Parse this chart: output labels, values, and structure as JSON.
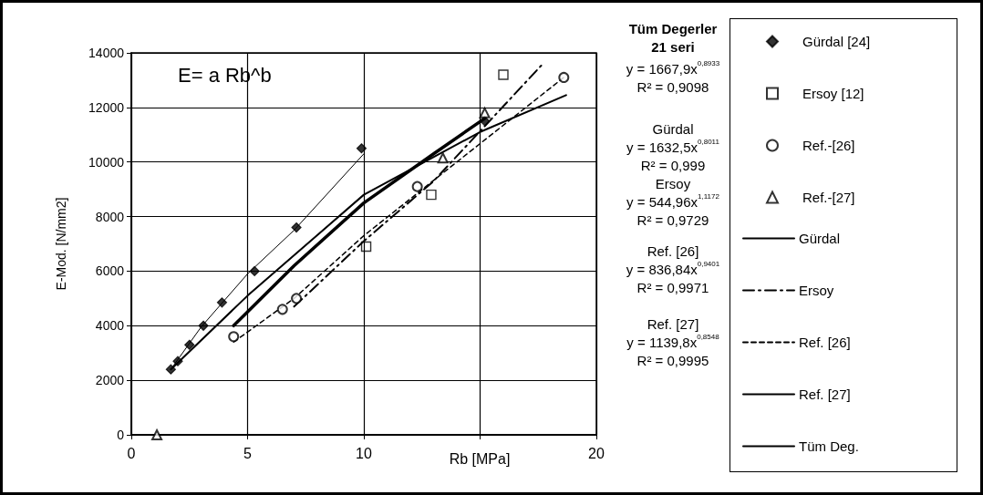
{
  "chart_data": {
    "type": "scatter",
    "xlabel": "Rb [MPa]",
    "ylabel": "E-Mod. [N/mm2]",
    "xlim": [
      0,
      20
    ],
    "xticks": [
      0,
      5,
      10,
      {
        "value": 15,
        "label": null
      },
      20
    ],
    "ylim": [
      0,
      14000
    ],
    "yticks": [
      0,
      2000,
      4000,
      6000,
      8000,
      10000,
      12000,
      14000
    ],
    "grid": true,
    "legend": "right",
    "annotations": [
      "E= a Rb^b",
      "Tüm Degerler\n21 seri",
      "y = 1667,9x$^{0,8933}$\nR² = 0,9098",
      "Gürdal\ny = 1632,5x$^{0,8011}$\nR² = 0,999",
      "Ersoy\ny = 544,96x$^{1,1172}$\nR² = 0,9729",
      "Ref. [26]\ny = 836,84x$^{0,9401}$\nR² = 0,9971",
      "Ref. [27]\ny = 1139,8x$^{0,8548}$\nR² = 0,9995"
    ],
    "series": [
      {
        "name": "Gürdal [24]",
        "marker": "diamond",
        "color": "#000000",
        "x": [
          1.7,
          2.0,
          2.5,
          3.1,
          3.9,
          5.3,
          7.1,
          9.9,
          15.2
        ],
        "values": [
          2400,
          2700,
          3300,
          4000,
          4850,
          6000,
          7600,
          10500,
          11500
        ]
      },
      {
        "name": "Ersoy [12]",
        "marker": "square",
        "color": "#000000",
        "x": [
          10.1,
          12.9,
          16.0
        ],
        "values": [
          6900,
          8800,
          13200
        ]
      },
      {
        "name": "Ref.-[26]",
        "marker": "circle",
        "color": "#000000",
        "x": [
          4.4,
          6.5,
          7.1,
          12.3,
          18.6
        ],
        "values": [
          3600,
          4600,
          5000,
          9100,
          13100
        ]
      },
      {
        "name": "Ref.-[27]",
        "marker": "triangle",
        "color": "#000000",
        "x": [
          1.1,
          13.4,
          15.2
        ],
        "values": [
          0,
          10150,
          11800
        ]
      },
      {
        "name": "Gürdal",
        "type": "line",
        "line_style": "solid",
        "color": "#000000",
        "x": [
          1.7,
          3,
          5,
          7,
          10
        ],
        "values": [
          2400,
          3950,
          5900,
          7500,
          10300
        ]
      },
      {
        "name": "Ersoy",
        "type": "line",
        "line_style": "dashdot",
        "color": "#000000",
        "x": [
          7,
          10,
          13,
          17.7
        ],
        "values": [
          4700,
          7100,
          9300,
          13600
        ]
      },
      {
        "name": "Ref. [26]",
        "type": "line",
        "line_style": "dashed",
        "color": "#000000",
        "x": [
          4.4,
          7,
          10,
          14,
          18.6
        ],
        "values": [
          3400,
          5000,
          7300,
          10000,
          13100
        ]
      },
      {
        "name": "Ref. [27]",
        "type": "line",
        "line_style": "solid",
        "color": "#000000",
        "x": [
          4.4,
          7,
          10,
          13,
          15.2
        ],
        "values": [
          4000,
          6200,
          8500,
          10300,
          11600
        ]
      },
      {
        "name": "Tüm Deg.",
        "type": "line",
        "line_style": "solid",
        "color": "#000000",
        "x": [
          1.7,
          5,
          10,
          15,
          18.7
        ],
        "values": [
          2400,
          5100,
          8800,
          11100,
          12450
        ]
      }
    ]
  }
}
